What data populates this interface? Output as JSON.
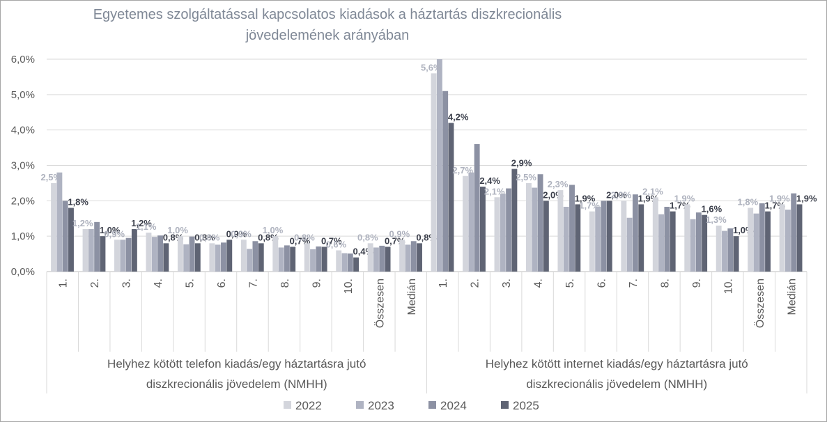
{
  "chart_data": {
    "type": "bar",
    "title_lines": [
      "Egyetemes szolgáltatással kapcsolatos kiadások a háztartás diszkrecionális",
      "jövedelemének arányában"
    ],
    "y_ticks": [
      "0,0%",
      "1,0%",
      "2,0%",
      "3,0%",
      "4,0%",
      "5,0%",
      "6,0%"
    ],
    "ylim": [
      0,
      0.06
    ],
    "grid": true,
    "legend_position": "bottom",
    "colors": [
      "#d3d5dc",
      "#afb3c2",
      "#8c91a3",
      "#5f6474"
    ],
    "label_colors": [
      "#aeb2be",
      "#aeb2be",
      "#3a3e4a",
      "#3a3e4a"
    ],
    "series_names": [
      "2022",
      "2023",
      "2024",
      "2025"
    ],
    "groups": [
      {
        "label_lines": [
          "Helyhez kötött telefon kiadás/egy háztartásra jutó",
          "diszkrecionális jövedelem (NMHH)"
        ],
        "categories": [
          "1.",
          "2.",
          "3.",
          "4.",
          "5.",
          "6.",
          "7.",
          "8.",
          "9.",
          "10.",
          "Összesen",
          "Medián"
        ],
        "series": [
          {
            "name": "2022",
            "values": [
              0.025,
              0.012,
              0.009,
              0.011,
              0.01,
              0.008,
              0.009,
              0.01,
              0.008,
              0.006,
              0.008,
              0.009
            ]
          },
          {
            "name": "2023",
            "values": [
              0.028,
              0.012,
              0.009,
              0.0098,
              0.0077,
              0.0076,
              0.0064,
              0.0068,
              0.0063,
              0.0052,
              0.0068,
              0.0076
            ]
          },
          {
            "name": "2024",
            "values": [
              0.02,
              0.014,
              0.0095,
              0.0102,
              0.0099,
              0.0082,
              0.0086,
              0.0074,
              0.0071,
              0.0051,
              0.0073,
              0.0086
            ]
          },
          {
            "name": "2025",
            "values": [
              0.018,
              0.01,
              0.012,
              0.008,
              0.008,
              0.009,
              0.008,
              0.007,
              0.007,
              0.004,
              0.007,
              0.008
            ]
          }
        ],
        "data_labels": [
          [
            "2,5%",
            "1,2%",
            "0,9%",
            "1,1%",
            "1,0%",
            "0,8%",
            "0,9%",
            "1,0%",
            "0,8%",
            "0,6%",
            "0,8%",
            "0,9%"
          ],
          [],
          [],
          [
            "1,8%",
            "1,0%",
            "1,2%",
            "0,8%",
            "0,8%",
            "0,9%",
            "0,8%",
            "0,7%",
            "0,7%",
            "0,4%",
            "0,7%",
            "0,8%"
          ]
        ]
      },
      {
        "label_lines": [
          "Helyhez kötött internet kiadás/egy háztartásra jutó",
          "diszkrecionális jövedelem (NMHH)"
        ],
        "categories": [
          "1.",
          "2.",
          "3.",
          "4.",
          "5.",
          "6.",
          "7.",
          "8.",
          "9.",
          "10.",
          "Összesen",
          "Medián"
        ],
        "series": [
          {
            "name": "2022",
            "values": [
              0.056,
              0.027,
              0.021,
              0.025,
              0.023,
              0.017,
              0.02,
              0.021,
              0.019,
              0.013,
              0.018,
              0.019
            ]
          },
          {
            "name": "2023",
            "values": [
              0.06,
              0.028,
              0.022,
              0.0237,
              0.0183,
              0.0183,
              0.0152,
              0.0162,
              0.0148,
              0.0115,
              0.0164,
              0.0175
            ]
          },
          {
            "name": "2024",
            "values": [
              0.051,
              0.036,
              0.0235,
              0.0275,
              0.0245,
              0.02,
              0.0218,
              0.0183,
              0.0167,
              0.0122,
              0.0193,
              0.0221
            ]
          },
          {
            "name": "2025",
            "values": [
              0.042,
              0.024,
              0.029,
              0.02,
              0.019,
              0.02,
              0.019,
              0.017,
              0.016,
              0.01,
              0.017,
              0.019
            ]
          }
        ],
        "data_labels": [
          [
            "5,6%",
            "2,7%",
            "2,1%",
            "2,5%",
            "2,3%",
            "1,7%",
            "2,0%",
            "2,1%",
            "1,9%",
            "1,3%",
            "1,8%",
            "1,9%"
          ],
          [],
          [],
          [
            "4,2%",
            "2,4%",
            "2,9%",
            "2,0%",
            "1,9%",
            "2,0%",
            "1,9%",
            "1,7%",
            "1,6%",
            "1,0%",
            "1,7%",
            "1,9%"
          ]
        ]
      }
    ]
  }
}
